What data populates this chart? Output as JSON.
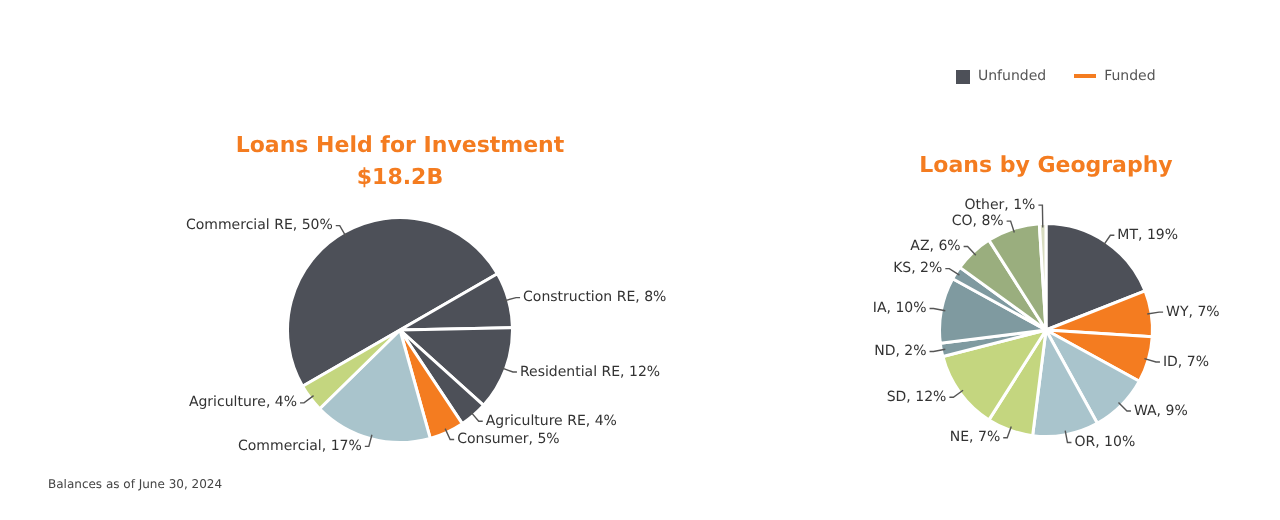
{
  "chart_data": [
    {
      "type": "pie",
      "title": "Loans Held for Investment",
      "subtitle": "$18.2B",
      "categories": [
        "Commercial RE, 50%",
        "Construction RE, 8%",
        "Residential RE, 12%",
        "Agriculture RE, 4%",
        "Consumer, 5%",
        "Commercial, 17%",
        "Agriculture, 4%"
      ],
      "values": [
        50,
        8,
        12,
        4,
        5,
        17,
        4
      ],
      "colors": [
        "#4d5058",
        "#4d5058",
        "#4d5058",
        "#4d5058",
        "#f47c20",
        "#a9c4cc",
        "#c4d67f"
      ],
      "annotations": [
        "Balances as of June 30, 2024"
      ]
    },
    {
      "type": "pie",
      "title": "Loans by Geography",
      "categories": [
        "MT, 19%",
        "WY, 7%",
        "ID, 7%",
        "WA, 9%",
        "OR, 10%",
        "NE, 7%",
        "SD, 12%",
        "ND, 2%",
        "IA, 10%",
        "KS, 2%",
        "AZ, 6%",
        "CO, 8%",
        "Other, 1%"
      ],
      "values": [
        19,
        7,
        7,
        9,
        10,
        7,
        12,
        2,
        10,
        2,
        6,
        8,
        1
      ],
      "colors": [
        "#4d5058",
        "#f47c20",
        "#f47c20",
        "#a9c4cc",
        "#a9c4cc",
        "#c4d67f",
        "#c4d67f",
        "#7f9aa0",
        "#7f9aa0",
        "#7f9aa0",
        "#9aae7e",
        "#9aae7e",
        "#d8dcc0"
      ]
    },
    {
      "type": "other",
      "legend": "top",
      "series": [
        {
          "name": "Unfunded",
          "color": "#4d5058"
        },
        {
          "name": "Funded",
          "color": "#f47c20"
        }
      ]
    }
  ]
}
